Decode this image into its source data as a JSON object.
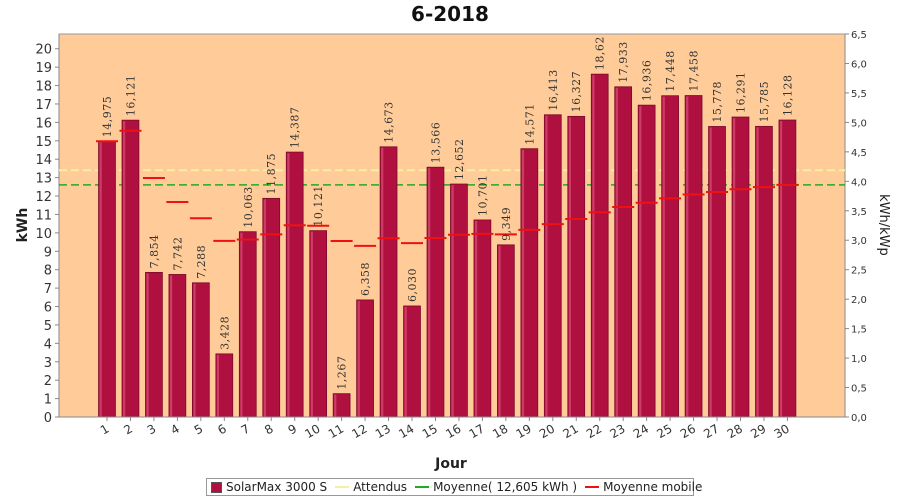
{
  "chart_data": {
    "type": "bar",
    "title": "6-2018",
    "xlabel": "Jour",
    "ylabel": "kWh",
    "y2label": "kWh/kWp",
    "ylim": [
      0,
      20.8
    ],
    "y2lim": [
      0,
      6.5
    ],
    "yticks": [
      "0",
      "1",
      "2",
      "3",
      "4",
      "5",
      "6",
      "7",
      "8",
      "9",
      "10",
      "11",
      "12",
      "13",
      "14",
      "15",
      "16",
      "17",
      "18",
      "19",
      "20"
    ],
    "y2ticks": [
      "0,0",
      "0,5",
      "1,0",
      "1,5",
      "2,0",
      "2,5",
      "3,0",
      "3,5",
      "4,0",
      "4,5",
      "5,0",
      "5,5",
      "6,0",
      "6,5"
    ],
    "categories": [
      "1",
      "2",
      "3",
      "4",
      "5",
      "6",
      "7",
      "8",
      "9",
      "10",
      "11",
      "12",
      "13",
      "14",
      "15",
      "16",
      "17",
      "18",
      "19",
      "20",
      "21",
      "22",
      "23",
      "24",
      "25",
      "26",
      "27",
      "28",
      "29",
      "30"
    ],
    "series": [
      {
        "name": "SolarMax 3000 S",
        "values": [
          14.975,
          16.121,
          7.854,
          7.742,
          7.288,
          3.428,
          10.063,
          11.875,
          14.387,
          10.121,
          1.267,
          6.358,
          14.673,
          6.03,
          13.566,
          12.652,
          10.701,
          9.349,
          14.571,
          16.413,
          16.327,
          18.62,
          17.933,
          16.936,
          17.448,
          17.458,
          15.778,
          16.291,
          15.785,
          16.128
        ],
        "labels": [
          "14,975",
          "16,121",
          "7,854",
          "7,742",
          "7,288",
          "3,428",
          "10,063",
          "11,875",
          "14,387",
          "10,121",
          "1,267",
          "6,358",
          "14,673",
          "6,030",
          "13,566",
          "12,652",
          "10,701",
          "9,349",
          "14,571",
          "16,413",
          "16,327",
          "18,62",
          "17,933",
          "16,936",
          "17,448",
          "17,458",
          "15,778",
          "16,291",
          "15,785",
          "16,128"
        ]
      },
      {
        "name": "Attendus",
        "value": 13.4
      },
      {
        "name": "Moyenne( 12,605 kWh )",
        "value": 12.605
      },
      {
        "name": "Moyenne mobile",
        "values": [
          14.975,
          15.548,
          12.983,
          11.673,
          10.796,
          9.568,
          9.638,
          9.918,
          10.415,
          10.386,
          9.557,
          9.291,
          9.705,
          9.443,
          9.718,
          9.901,
          9.948,
          9.915,
          10.16,
          10.473,
          10.752,
          11.11,
          11.407,
          11.637,
          11.87,
          12.085,
          12.222,
          12.367,
          12.485,
          12.605
        ]
      }
    ],
    "colors": {
      "bar": "#b01040",
      "plot_bg": "#ffcc99",
      "attendus": "#f5f0a0",
      "moyenne": "#22aa22",
      "mobile": "#ee1111"
    },
    "grid": false,
    "legend_position": "bottom"
  }
}
